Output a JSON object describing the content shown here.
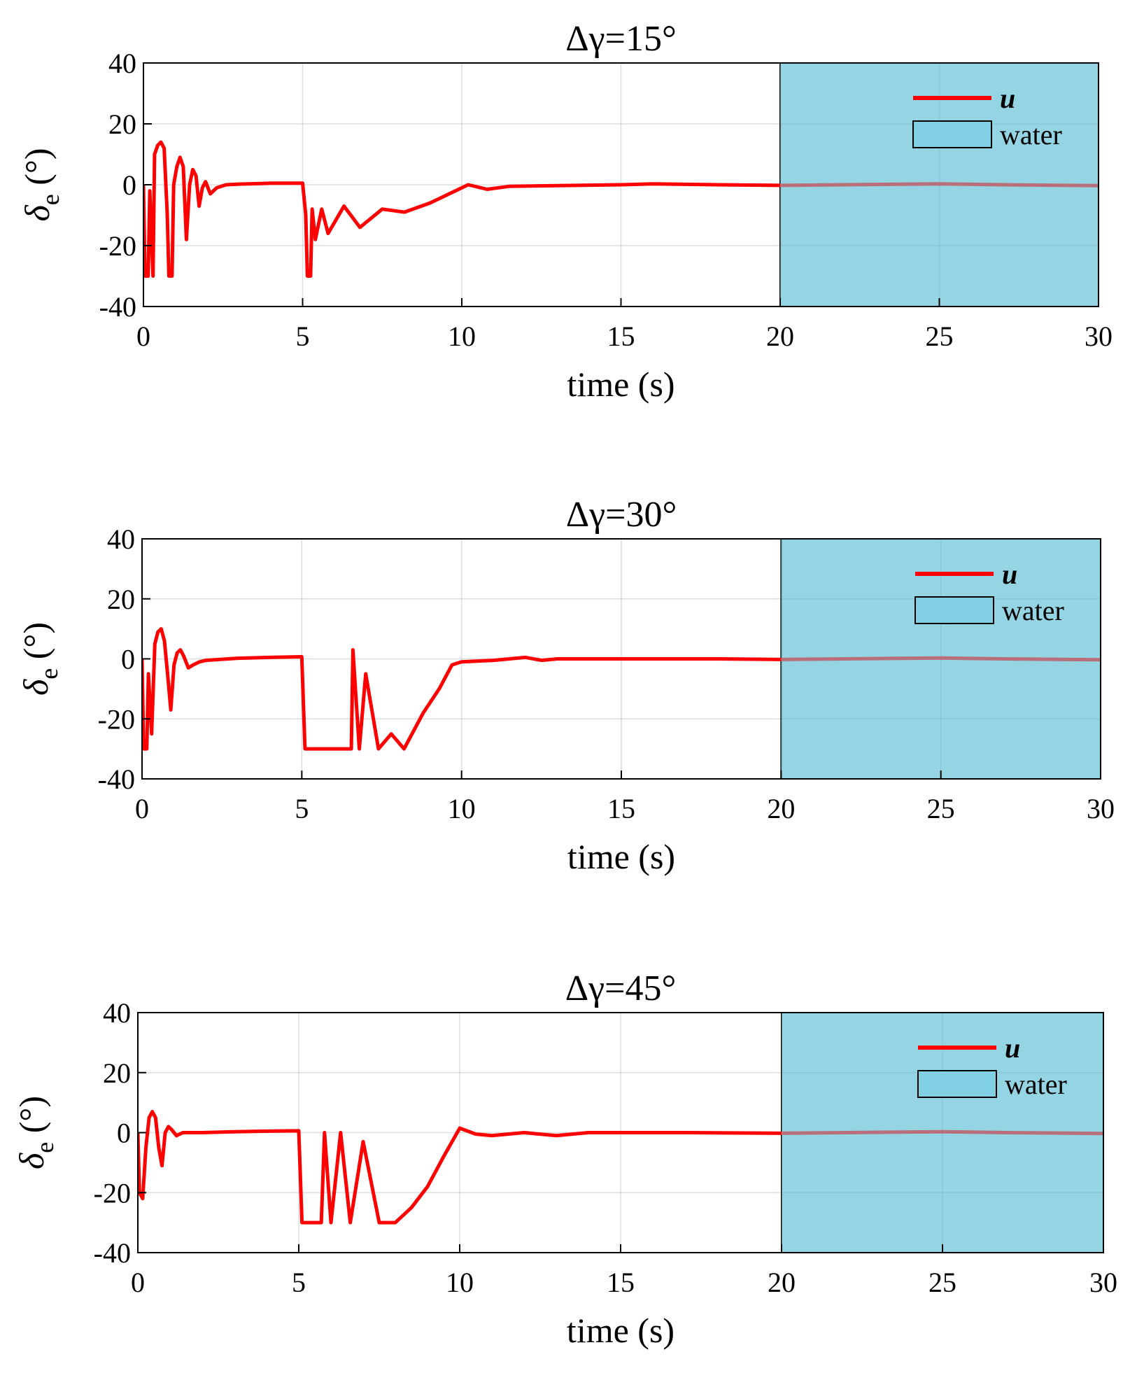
{
  "chart_data": [
    {
      "type": "line",
      "title": "Δγ=15°",
      "xlabel": "time (s)",
      "ylabel_symbol": "δ",
      "ylabel_subscript": "e",
      "ylabel_unit": " (°)",
      "xlim": [
        0,
        30
      ],
      "ylim": [
        -40,
        40
      ],
      "xticks": [
        0,
        5,
        10,
        15,
        20,
        25,
        30
      ],
      "yticks": [
        -40,
        -20,
        0,
        20,
        40
      ],
      "shaded_region": {
        "x_start": 20,
        "x_end": 30,
        "label": "water"
      },
      "grid": true,
      "legend_position": "top-right",
      "series": [
        {
          "name": "u",
          "color": "#ff0000",
          "points": [
            [
              0,
              0
            ],
            [
              0.05,
              -30
            ],
            [
              0.15,
              -30
            ],
            [
              0.2,
              -2
            ],
            [
              0.3,
              -30
            ],
            [
              0.35,
              10
            ],
            [
              0.45,
              13
            ],
            [
              0.55,
              14
            ],
            [
              0.65,
              12
            ],
            [
              0.75,
              -10
            ],
            [
              0.8,
              -30
            ],
            [
              0.9,
              -30
            ],
            [
              0.95,
              0
            ],
            [
              1.05,
              6
            ],
            [
              1.15,
              9
            ],
            [
              1.25,
              6
            ],
            [
              1.35,
              -18
            ],
            [
              1.45,
              0
            ],
            [
              1.55,
              5
            ],
            [
              1.65,
              3
            ],
            [
              1.75,
              -7
            ],
            [
              1.85,
              -1
            ],
            [
              1.95,
              1
            ],
            [
              2.1,
              -3
            ],
            [
              2.3,
              -1
            ],
            [
              2.6,
              0
            ],
            [
              3,
              0.2
            ],
            [
              4,
              0.5
            ],
            [
              5.0,
              0.5
            ],
            [
              5.1,
              -10
            ],
            [
              5.15,
              -30
            ],
            [
              5.25,
              -30
            ],
            [
              5.3,
              -8
            ],
            [
              5.4,
              -18
            ],
            [
              5.6,
              -8
            ],
            [
              5.8,
              -16
            ],
            [
              6.3,
              -7
            ],
            [
              6.8,
              -14
            ],
            [
              7.5,
              -8
            ],
            [
              8.2,
              -9
            ],
            [
              9,
              -6
            ],
            [
              10,
              -1
            ],
            [
              10.2,
              0
            ],
            [
              10.8,
              -1.5
            ],
            [
              11.5,
              -0.5
            ],
            [
              13,
              -0.3
            ],
            [
              15,
              0
            ],
            [
              16,
              0.3
            ],
            [
              18,
              0
            ],
            [
              20,
              -0.2
            ],
            [
              22,
              0
            ],
            [
              25,
              0.3
            ],
            [
              27,
              0
            ],
            [
              30,
              -0.3
            ]
          ]
        }
      ]
    },
    {
      "type": "line",
      "title": "Δγ=30°",
      "xlabel": "time (s)",
      "ylabel_symbol": "δ",
      "ylabel_subscript": "e",
      "ylabel_unit": " (°)",
      "xlim": [
        0,
        30
      ],
      "ylim": [
        -40,
        40
      ],
      "xticks": [
        0,
        5,
        10,
        15,
        20,
        25,
        30
      ],
      "yticks": [
        -40,
        -20,
        0,
        20,
        40
      ],
      "shaded_region": {
        "x_start": 20,
        "x_end": 30,
        "label": "water"
      },
      "grid": true,
      "legend_position": "top-right",
      "series": [
        {
          "name": "u",
          "color": "#ff0000",
          "points": [
            [
              0,
              0
            ],
            [
              0.05,
              -30
            ],
            [
              0.15,
              -30
            ],
            [
              0.2,
              -5
            ],
            [
              0.3,
              -25
            ],
            [
              0.4,
              5
            ],
            [
              0.5,
              9
            ],
            [
              0.6,
              10
            ],
            [
              0.7,
              6
            ],
            [
              0.8,
              -5
            ],
            [
              0.9,
              -17
            ],
            [
              1.0,
              -2
            ],
            [
              1.1,
              2
            ],
            [
              1.2,
              3
            ],
            [
              1.3,
              1
            ],
            [
              1.45,
              -3
            ],
            [
              1.6,
              -2
            ],
            [
              1.8,
              -1
            ],
            [
              2.0,
              -0.5
            ],
            [
              3,
              0.2
            ],
            [
              4,
              0.5
            ],
            [
              5.0,
              0.7
            ],
            [
              5.1,
              -30
            ],
            [
              6.55,
              -30
            ],
            [
              6.6,
              3
            ],
            [
              6.8,
              -30
            ],
            [
              7.0,
              -5
            ],
            [
              7.4,
              -30
            ],
            [
              7.8,
              -25
            ],
            [
              8.2,
              -30
            ],
            [
              8.8,
              -18
            ],
            [
              9.3,
              -10
            ],
            [
              9.7,
              -2
            ],
            [
              10,
              -1
            ],
            [
              11,
              -0.5
            ],
            [
              12,
              0.5
            ],
            [
              12.5,
              -0.5
            ],
            [
              13,
              0
            ],
            [
              15,
              0
            ],
            [
              18,
              0
            ],
            [
              20,
              -0.2
            ],
            [
              22,
              0
            ],
            [
              25,
              0.3
            ],
            [
              27,
              0
            ],
            [
              30,
              -0.3
            ]
          ]
        }
      ]
    },
    {
      "type": "line",
      "title": "Δγ=45°",
      "xlabel": "time (s)",
      "ylabel_symbol": "δ",
      "ylabel_subscript": "e",
      "ylabel_unit": " (°)",
      "xlim": [
        0,
        30
      ],
      "ylim": [
        -40,
        40
      ],
      "xticks": [
        0,
        5,
        10,
        15,
        20,
        25,
        30
      ],
      "yticks": [
        -40,
        -20,
        0,
        20,
        40
      ],
      "shaded_region": {
        "x_start": 20,
        "x_end": 30,
        "label": "water"
      },
      "grid": true,
      "legend_position": "top-right",
      "series": [
        {
          "name": "u",
          "color": "#ff0000",
          "points": [
            [
              0,
              0
            ],
            [
              0.05,
              -20
            ],
            [
              0.15,
              -22
            ],
            [
              0.25,
              -5
            ],
            [
              0.35,
              5
            ],
            [
              0.45,
              7
            ],
            [
              0.55,
              5
            ],
            [
              0.65,
              -5
            ],
            [
              0.75,
              -11
            ],
            [
              0.85,
              0
            ],
            [
              0.95,
              2
            ],
            [
              1.05,
              1
            ],
            [
              1.2,
              -1
            ],
            [
              1.4,
              0
            ],
            [
              2,
              0
            ],
            [
              3,
              0.3
            ],
            [
              4,
              0.5
            ],
            [
              5.0,
              0.6
            ],
            [
              5.1,
              -30
            ],
            [
              5.7,
              -30
            ],
            [
              5.8,
              0
            ],
            [
              6.0,
              -30
            ],
            [
              6.3,
              0
            ],
            [
              6.6,
              -30
            ],
            [
              7.0,
              -3
            ],
            [
              7.5,
              -30
            ],
            [
              8.0,
              -30
            ],
            [
              8.5,
              -25
            ],
            [
              9.0,
              -18
            ],
            [
              9.5,
              -8
            ],
            [
              10,
              1.5
            ],
            [
              10.5,
              -0.5
            ],
            [
              11,
              -1
            ],
            [
              12,
              0
            ],
            [
              13,
              -1
            ],
            [
              14,
              0
            ],
            [
              15,
              0
            ],
            [
              17,
              0
            ],
            [
              20,
              -0.2
            ],
            [
              22,
              0
            ],
            [
              25,
              0.3
            ],
            [
              27,
              0
            ],
            [
              30,
              -0.3
            ]
          ]
        }
      ]
    }
  ]
}
